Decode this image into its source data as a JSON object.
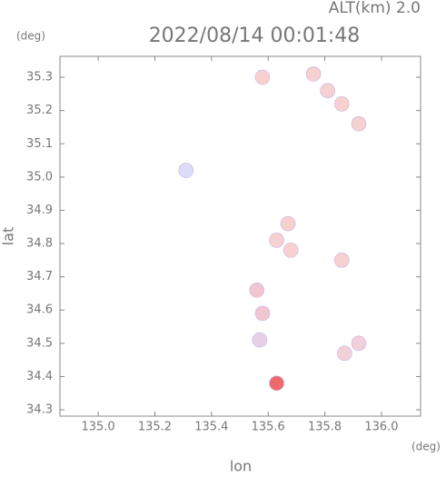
{
  "chart_data": {
    "type": "scatter",
    "title": "2022/08/14 00:01:48",
    "subtitle": "ALT(km) 2.0",
    "y_unit": "(deg)",
    "x_unit": "(deg)",
    "xlabel": "lon",
    "ylabel": "lat",
    "x": [
      135.76,
      135.81,
      135.86,
      135.92,
      135.58,
      135.31,
      135.67,
      135.63,
      135.68,
      135.86,
      135.56,
      135.58,
      135.57,
      135.92,
      135.87,
      135.63
    ],
    "y": [
      35.31,
      35.26,
      35.22,
      35.16,
      35.3,
      35.02,
      34.86,
      34.81,
      34.78,
      34.75,
      34.66,
      34.59,
      34.51,
      34.5,
      34.47,
      34.38
    ],
    "colors": [
      "#f7d0d0",
      "#f7d0d0",
      "#f7d0d0",
      "#f7d0d0",
      "#f7d0d0",
      "#dcdcf7",
      "#f7d0d0",
      "#f7d0d0",
      "#f7d0d0",
      "#f7d0d0",
      "#f2c6d0",
      "#f2c6d0",
      "#e8d0e8",
      "#f2d0d8",
      "#f2d0d8",
      "#ee6a6a"
    ],
    "xlim": [
      134.865,
      136.138
    ],
    "ylim": [
      34.281,
      35.363
    ],
    "xticks": [
      {
        "value": 135.0,
        "label": "135.0"
      },
      135.2,
      135.4,
      135.6,
      135.8,
      {
        "value": 136.0,
        "label": "136.0"
      }
    ],
    "yticks": [
      35.3,
      35.2,
      35.1,
      {
        "value": 35.0,
        "label": "35.0"
      },
      34.9,
      34.8,
      34.7,
      34.6,
      34.5,
      34.4,
      34.3
    ]
  }
}
